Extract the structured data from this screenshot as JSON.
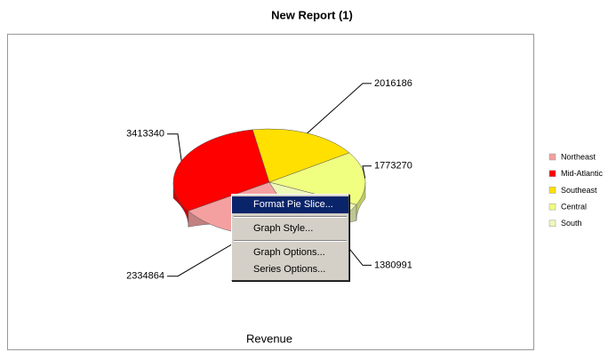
{
  "chart_data": {
    "type": "pie3d",
    "title": "New Report (1)",
    "x_label": "Revenue",
    "categories": [
      "Northeast",
      "Mid-Atlantic",
      "Southeast",
      "Central",
      "South"
    ],
    "values": [
      2334864,
      3413340,
      2016186,
      1773270,
      1380991
    ],
    "colors": [
      "#f4a0a0",
      "#ff0000",
      "#ffe000",
      "#f0ff80",
      "#eef8b8"
    ],
    "legend": "right"
  },
  "context_menu": {
    "items": [
      "Format Pie Slice...",
      "Graph Style...",
      "Graph Options...",
      "Series Options..."
    ]
  }
}
